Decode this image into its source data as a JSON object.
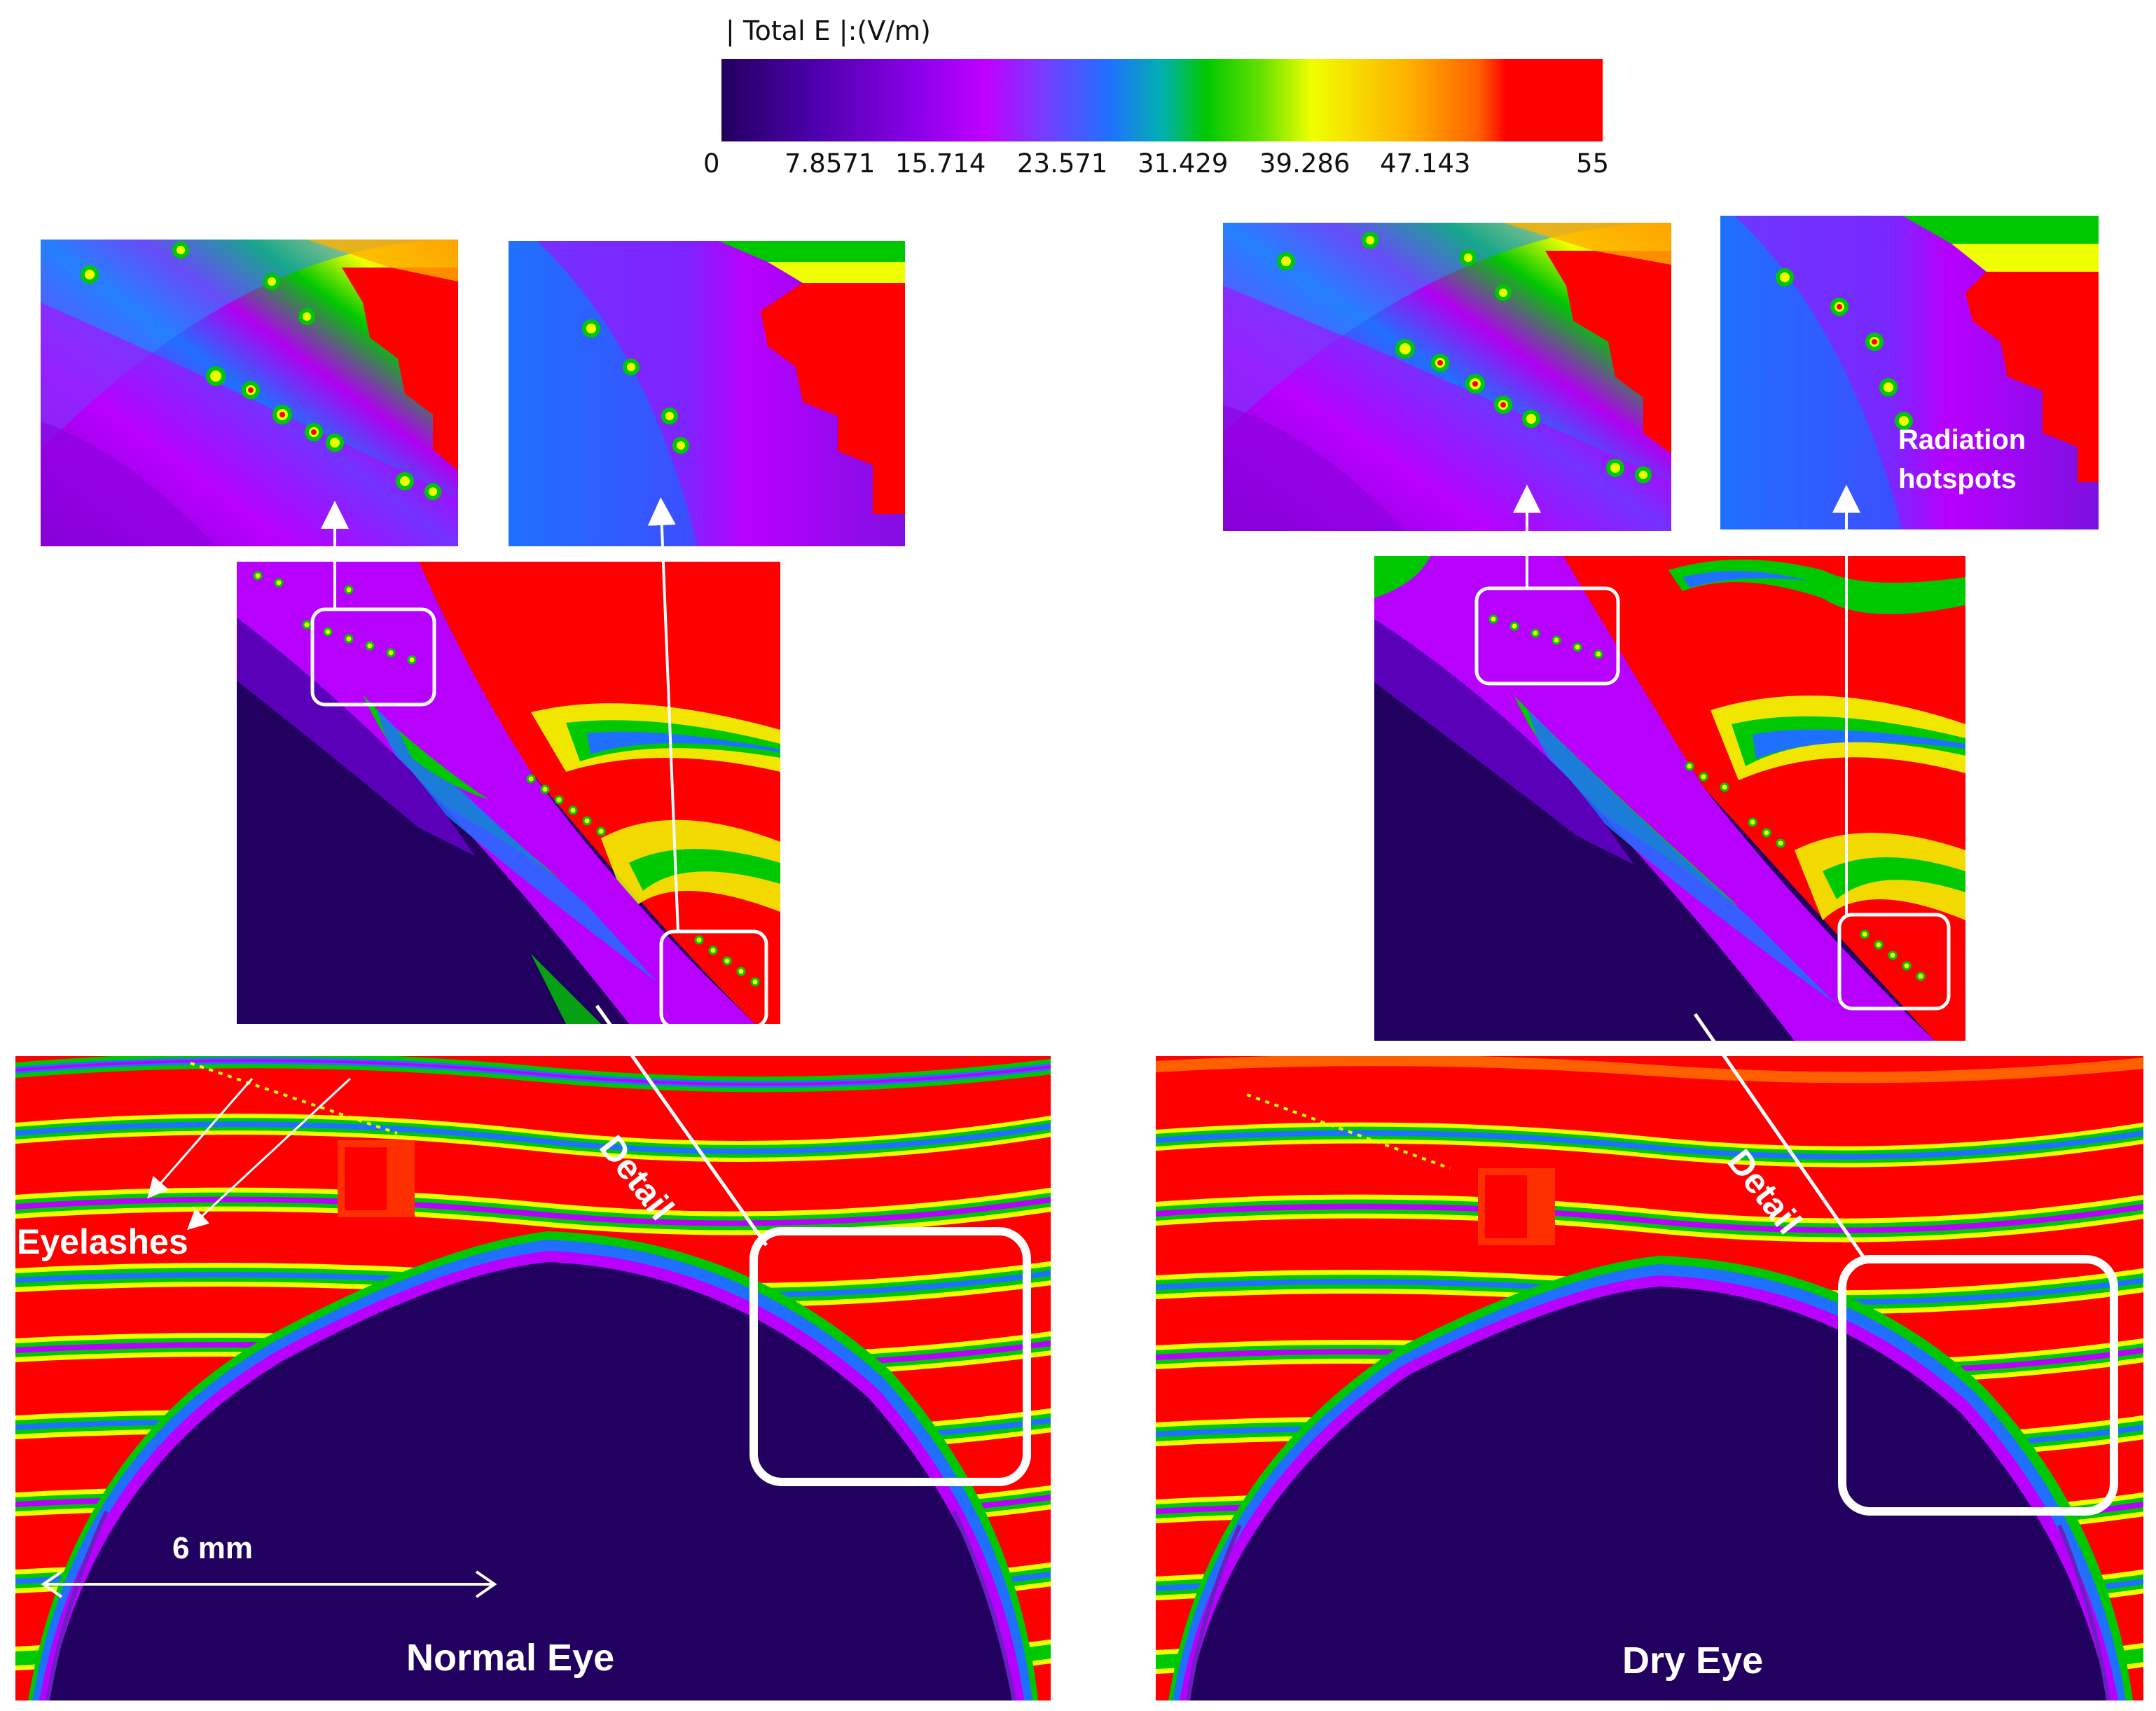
{
  "colorbar": {
    "title": "| Total E |:(V/m)",
    "ticks": [
      "0",
      "7.8571",
      "15.714",
      "23.571",
      "31.429",
      "39.286",
      "47.143",
      "55"
    ],
    "colors": [
      "#22005f",
      "#5a00b8",
      "#b800ff",
      "#2060ff",
      "#00c800",
      "#f0ff00",
      "#ff9000",
      "#ff0000"
    ]
  },
  "normal_eye": {
    "label": "Normal Eye",
    "scale_label": "6 mm",
    "eyelashes_label": "Eyelashes",
    "detail_label": "Detail"
  },
  "dry_eye": {
    "label": "Dry Eye",
    "detail_label": "Detail",
    "hotspots_label_line1": "Radiation",
    "hotspots_label_line2": "hotspots"
  }
}
